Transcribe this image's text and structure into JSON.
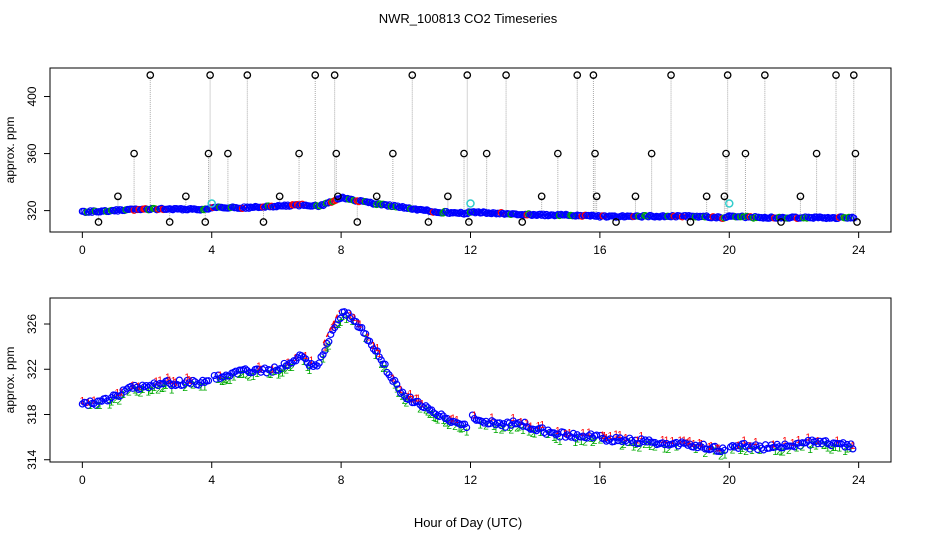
{
  "figure_title": "NWR_100813  CO2 Timeseries",
  "x_axis_label": "Hour of Day (UTC)",
  "chart_data": [
    {
      "type": "scatter",
      "panel": "top",
      "ylabel": "approx. ppm",
      "xlim": [
        -1,
        25
      ],
      "ylim": [
        305,
        420
      ],
      "xticks": [
        0,
        4,
        8,
        12,
        16,
        20,
        24
      ],
      "yticks": [
        320,
        360,
        400
      ],
      "line_color": "#aaaaaa",
      "colors": {
        "main": "#0000ff",
        "alt": "#00aa00",
        "flag": "#ff0000",
        "cal": "#33cccc",
        "spike": "#000000"
      },
      "baseline": [
        [
          0,
          319
        ],
        [
          1,
          320
        ],
        [
          2,
          321
        ],
        [
          3,
          321
        ],
        [
          3.9,
          321
        ],
        [
          4,
          322
        ],
        [
          5,
          322
        ],
        [
          6,
          323
        ],
        [
          6.8,
          324
        ],
        [
          7.3,
          323
        ],
        [
          7.8,
          327
        ],
        [
          8,
          329
        ],
        [
          9,
          325
        ],
        [
          10,
          322
        ],
        [
          11,
          319
        ],
        [
          11.9,
          318
        ],
        [
          12,
          319
        ],
        [
          13,
          318
        ],
        [
          14,
          317
        ],
        [
          15,
          317
        ],
        [
          16,
          316
        ],
        [
          17,
          316
        ],
        [
          18,
          316
        ],
        [
          19,
          316
        ],
        [
          19.8,
          315
        ],
        [
          20,
          316
        ],
        [
          21,
          315
        ],
        [
          22,
          315
        ],
        [
          23,
          315
        ],
        [
          23.8,
          315
        ]
      ],
      "spike_hours": [
        0.5,
        1.1,
        1.6,
        2.1,
        2.7,
        3.2,
        3.8,
        3.9,
        3.95,
        4.5,
        5.1,
        5.6,
        6.1,
        6.7,
        7.2,
        7.8,
        7.85,
        7.9,
        8.5,
        9.1,
        9.6,
        10.7,
        10.2,
        11.3,
        11.8,
        11.9,
        11.95,
        12.5,
        13.1,
        13.6,
        14.2,
        14.7,
        15.3,
        15.8,
        15.85,
        15.9,
        16.5,
        17.1,
        17.6,
        18.2,
        18.8,
        19.3,
        19.9,
        19.85,
        19.95,
        20.5,
        21.1,
        21.6,
        22.2,
        22.7,
        23.3,
        23.85,
        23.9,
        23.95
      ],
      "spike_values": [
        312,
        330,
        360,
        415,
        312,
        330,
        312,
        360,
        415,
        360,
        415,
        312,
        330,
        360,
        415,
        415,
        360,
        330,
        312,
        330,
        360,
        312,
        415,
        330,
        360,
        415,
        312,
        360,
        415,
        312,
        330,
        360,
        415,
        415,
        360,
        330,
        312,
        330,
        360,
        415,
        312,
        330,
        360,
        330,
        415,
        360,
        415,
        312,
        330,
        360,
        415,
        415,
        360,
        312
      ],
      "cal_points": [
        [
          4,
          325
        ],
        [
          12,
          325
        ],
        [
          20,
          325
        ]
      ]
    },
    {
      "type": "scatter",
      "panel": "bottom",
      "ylabel": "approx. ppm",
      "xlim": [
        -1,
        25
      ],
      "ylim": [
        313.8,
        328.3
      ],
      "xticks": [
        0,
        4,
        8,
        12,
        16,
        20,
        24
      ],
      "yticks": [
        314,
        318,
        322,
        326
      ],
      "colors": {
        "main": "#0000ff",
        "alt": "#00aa00",
        "flag": "#ff0000"
      },
      "baseline": [
        [
          0,
          318.9
        ],
        [
          0.5,
          319
        ],
        [
          1,
          319.6
        ],
        [
          1.5,
          320.3
        ],
        [
          2,
          320.5
        ],
        [
          2.5,
          320.8
        ],
        [
          3,
          320.8
        ],
        [
          3.5,
          320.8
        ],
        [
          3.9,
          320.9
        ],
        [
          4,
          321.3
        ],
        [
          4.5,
          321.4
        ],
        [
          5,
          321.8
        ],
        [
          5.5,
          321.8
        ],
        [
          6,
          322
        ],
        [
          6.3,
          322.5
        ],
        [
          6.8,
          323.2
        ],
        [
          7,
          322.3
        ],
        [
          7.3,
          322.5
        ],
        [
          7.6,
          324.5
        ],
        [
          8,
          326.8
        ],
        [
          8.2,
          326.9
        ],
        [
          8.5,
          326
        ],
        [
          9,
          324
        ],
        [
          9.5,
          321.5
        ],
        [
          10,
          319.5
        ],
        [
          10.5,
          318.8
        ],
        [
          11,
          318
        ],
        [
          11.5,
          317.3
        ],
        [
          11.9,
          317
        ],
        [
          12,
          317.8
        ],
        [
          12.5,
          317.3
        ],
        [
          13,
          317
        ],
        [
          13.5,
          317.3
        ],
        [
          14,
          316.8
        ],
        [
          14.5,
          316.3
        ],
        [
          15,
          316.2
        ],
        [
          15.5,
          316.1
        ],
        [
          15.9,
          316
        ],
        [
          16,
          315.9
        ],
        [
          17,
          315.7
        ],
        [
          18,
          315.5
        ],
        [
          19,
          315.3
        ],
        [
          19.8,
          314.8
        ],
        [
          20,
          315.3
        ],
        [
          21,
          315.1
        ],
        [
          22,
          315.3
        ],
        [
          22.5,
          315.5
        ],
        [
          23,
          315.5
        ],
        [
          23.8,
          315.2
        ]
      ]
    }
  ]
}
